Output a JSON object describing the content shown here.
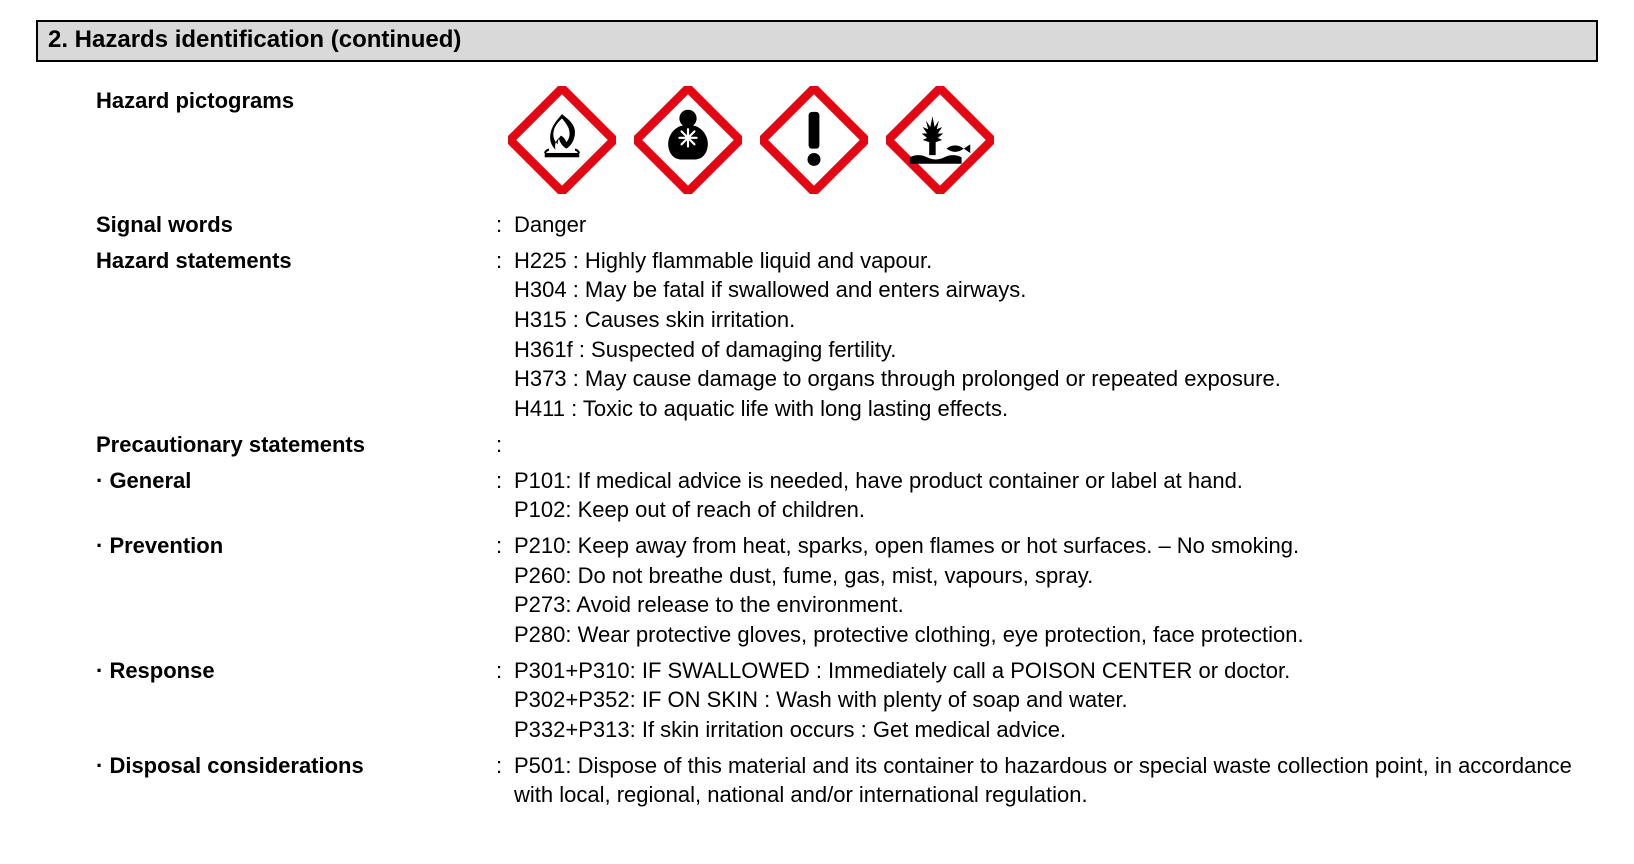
{
  "colors": {
    "section_bg": "#d9d9d9",
    "section_border": "#000000",
    "text": "#000000",
    "pictogram_border": "#e30613",
    "pictogram_fill": "#ffffff",
    "pictogram_symbol": "#000000"
  },
  "typography": {
    "header_fontsize_pt": 18,
    "body_fontsize_pt": 16,
    "font_family": "Helvetica, Arial, sans-serif",
    "label_weight": 700,
    "value_weight": 400
  },
  "section": {
    "title": "2.  Hazards identification  (continued)"
  },
  "labels": {
    "hazard_pictograms": "Hazard pictograms",
    "signal_words": "Signal words",
    "hazard_statements": "Hazard statements",
    "precautionary_statements": "Precautionary statements",
    "general": "· General",
    "prevention": "· Prevention",
    "response": "· Response",
    "disposal": "· Disposal considerations"
  },
  "pictograms": [
    {
      "name": "ghs-flame-icon"
    },
    {
      "name": "ghs-health-hazard-icon"
    },
    {
      "name": "ghs-exclamation-icon"
    },
    {
      "name": "ghs-environment-icon"
    }
  ],
  "signal_words": "Danger",
  "hazard_statements": [
    "H225 : Highly flammable liquid and vapour.",
    "H304 : May be fatal if swallowed and enters airways.",
    "H315 : Causes skin irritation.",
    "H361f : Suspected of damaging fertility.",
    "H373 : May cause damage to organs through prolonged or repeated exposure.",
    "H411 : Toxic to aquatic life with long lasting effects."
  ],
  "precautionary": {
    "general": [
      "P101: If medical advice is needed, have product container or label at hand.",
      "P102: Keep out of reach of children."
    ],
    "prevention": [
      "P210: Keep away from heat, sparks, open flames or hot surfaces. – No smoking.",
      "P260: Do not breathe dust, fume, gas, mist, vapours, spray.",
      "P273: Avoid release to the environment.",
      "P280: Wear protective gloves, protective clothing, eye protection, face protection."
    ],
    "response": [
      "P301+P310: IF SWALLOWED :  Immediately call a POISON CENTER or doctor.",
      "P302+P352: IF ON SKIN : Wash with plenty of soap and water.",
      "P332+P313: If skin irritation occurs : Get medical advice."
    ],
    "disposal": [
      "P501: Dispose of this material and its container to hazardous or special waste collection point, in accordance with local, regional, national and/or international regulation."
    ]
  }
}
